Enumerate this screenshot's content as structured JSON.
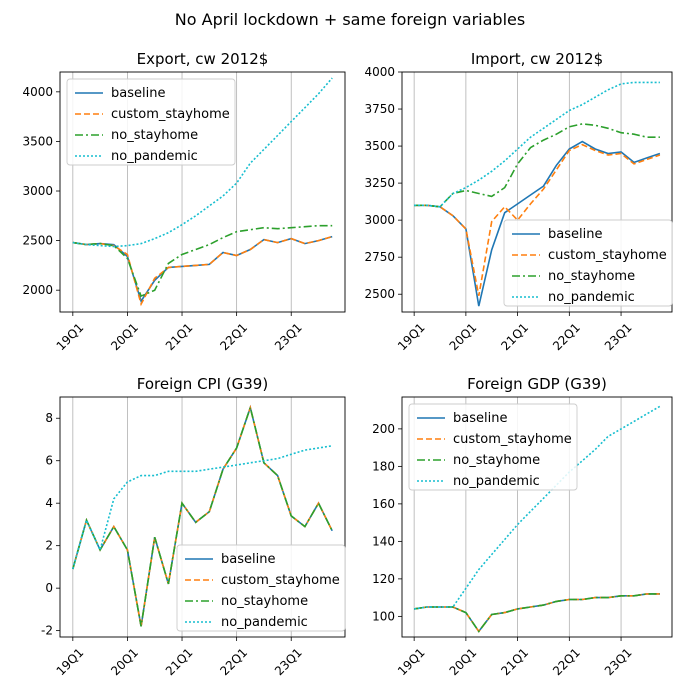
{
  "figure": {
    "suptitle": "No April lockdown + same foreign variables"
  },
  "colors": {
    "baseline": "#1f77b4",
    "custom_stayhome": "#ff7f0e",
    "no_stayhome": "#2ca02c",
    "no_pandemic": "#17becf",
    "grid": "#b0b0b0"
  },
  "chart_data": [
    {
      "type": "line",
      "title": "Export, cw 2012$",
      "x_ticks": [
        "19Q1",
        "20Q1",
        "21Q1",
        "22Q1",
        "23Q1"
      ],
      "ylim": [
        1780,
        4200
      ],
      "y_ticks": [
        2000,
        2500,
        3000,
        3500,
        4000
      ],
      "grid": "vertical",
      "legend": "upper-left",
      "x_count": 20,
      "series": [
        {
          "name": "baseline",
          "style": "solid",
          "values": [
            2480,
            2460,
            2470,
            2460,
            2340,
            1890,
            2100,
            2230,
            2240,
            2250,
            2260,
            2380,
            2350,
            2410,
            2510,
            2480,
            2520,
            2470,
            2500,
            2540
          ]
        },
        {
          "name": "custom_stayhome",
          "style": "dashed",
          "values": [
            2480,
            2460,
            2470,
            2450,
            2360,
            1860,
            2120,
            2230,
            2240,
            2250,
            2260,
            2380,
            2350,
            2410,
            2510,
            2480,
            2520,
            2470,
            2500,
            2540
          ]
        },
        {
          "name": "no_stayhome",
          "style": "dashdot",
          "values": [
            2480,
            2460,
            2470,
            2450,
            2320,
            1940,
            2000,
            2270,
            2360,
            2410,
            2460,
            2530,
            2590,
            2610,
            2630,
            2620,
            2630,
            2640,
            2650,
            2650
          ]
        },
        {
          "name": "no_pandemic",
          "style": "dotted",
          "values": [
            2480,
            2460,
            2450,
            2440,
            2450,
            2470,
            2520,
            2580,
            2660,
            2750,
            2850,
            2950,
            3080,
            3280,
            3420,
            3560,
            3700,
            3840,
            3980,
            4140
          ]
        }
      ]
    },
    {
      "type": "line",
      "title": "Import, cw 2012$",
      "x_ticks": [
        "19Q1",
        "20Q1",
        "21Q1",
        "22Q1",
        "23Q1"
      ],
      "ylim": [
        2380,
        4000
      ],
      "y_ticks": [
        2500,
        2750,
        3000,
        3250,
        3500,
        3750,
        4000
      ],
      "grid": "vertical",
      "legend": "lower-right",
      "x_count": 20,
      "series": [
        {
          "name": "baseline",
          "style": "solid",
          "values": [
            3100,
            3100,
            3090,
            3030,
            2940,
            2420,
            2800,
            3050,
            3110,
            3170,
            3230,
            3370,
            3480,
            3530,
            3480,
            3450,
            3460,
            3390,
            3420,
            3450
          ]
        },
        {
          "name": "custom_stayhome",
          "style": "dashed",
          "values": [
            3100,
            3100,
            3090,
            3030,
            2940,
            2490,
            2990,
            3090,
            3000,
            3110,
            3210,
            3340,
            3470,
            3510,
            3470,
            3440,
            3450,
            3380,
            3410,
            3440
          ]
        },
        {
          "name": "no_stayhome",
          "style": "dashdot",
          "values": [
            3100,
            3100,
            3090,
            3180,
            3200,
            3180,
            3160,
            3220,
            3380,
            3490,
            3540,
            3580,
            3630,
            3650,
            3640,
            3620,
            3590,
            3580,
            3560,
            3560
          ]
        },
        {
          "name": "no_pandemic",
          "style": "dotted",
          "values": [
            3100,
            3100,
            3090,
            3180,
            3220,
            3270,
            3330,
            3400,
            3480,
            3560,
            3620,
            3680,
            3740,
            3780,
            3830,
            3880,
            3920,
            3930,
            3930,
            3930
          ]
        }
      ]
    },
    {
      "type": "line",
      "title": "Foreign CPI (G39)",
      "x_ticks": [
        "19Q1",
        "20Q1",
        "21Q1",
        "22Q1",
        "23Q1"
      ],
      "ylim": [
        -2.3,
        9
      ],
      "y_ticks": [
        -2,
        0,
        2,
        4,
        6,
        8
      ],
      "grid": "vertical",
      "legend": "lower-right",
      "x_count": 20,
      "series": [
        {
          "name": "baseline",
          "style": "solid",
          "values": [
            0.9,
            3.2,
            1.8,
            2.9,
            1.8,
            -1.8,
            2.4,
            0.2,
            4.0,
            3.1,
            3.6,
            5.6,
            6.6,
            8.5,
            5.9,
            5.3,
            3.4,
            2.9,
            4.0,
            2.7
          ]
        },
        {
          "name": "custom_stayhome",
          "style": "dashed",
          "values": [
            0.9,
            3.2,
            1.8,
            2.9,
            1.8,
            -1.8,
            2.4,
            0.2,
            4.0,
            3.1,
            3.6,
            5.6,
            6.6,
            8.5,
            5.9,
            5.3,
            3.4,
            2.9,
            4.0,
            2.7
          ]
        },
        {
          "name": "no_stayhome",
          "style": "dashdot",
          "values": [
            0.9,
            3.2,
            1.8,
            2.9,
            1.8,
            -1.8,
            2.4,
            0.2,
            4.0,
            3.1,
            3.6,
            5.6,
            6.6,
            8.5,
            5.9,
            5.3,
            3.4,
            2.9,
            4.0,
            2.7
          ]
        },
        {
          "name": "no_pandemic",
          "style": "dotted",
          "values": [
            0.9,
            3.2,
            1.8,
            4.2,
            5.0,
            5.3,
            5.3,
            5.5,
            5.5,
            5.5,
            5.6,
            5.7,
            5.8,
            5.9,
            6.0,
            6.1,
            6.3,
            6.5,
            6.6,
            6.7
          ]
        }
      ]
    },
    {
      "type": "line",
      "title": "Foreign GDP (G39)",
      "x_ticks": [
        "19Q1",
        "20Q1",
        "21Q1",
        "22Q1",
        "23Q1"
      ],
      "ylim": [
        89,
        217
      ],
      "y_ticks": [
        100,
        120,
        140,
        160,
        180,
        200
      ],
      "grid": "vertical",
      "legend": "upper-left",
      "x_count": 20,
      "series": [
        {
          "name": "baseline",
          "style": "solid",
          "values": [
            104,
            105,
            105,
            105,
            102,
            92,
            101,
            102,
            104,
            105,
            106,
            108,
            109,
            109,
            110,
            110,
            111,
            111,
            112,
            112
          ]
        },
        {
          "name": "custom_stayhome",
          "style": "dashed",
          "values": [
            104,
            105,
            105,
            105,
            102,
            92,
            101,
            102,
            104,
            105,
            106,
            108,
            109,
            109,
            110,
            110,
            111,
            111,
            112,
            112
          ]
        },
        {
          "name": "no_stayhome",
          "style": "dashdot",
          "values": [
            104,
            105,
            105,
            105,
            102,
            92,
            101,
            102,
            104,
            105,
            106,
            108,
            109,
            109,
            110,
            110,
            111,
            111,
            112,
            112
          ]
        },
        {
          "name": "no_pandemic",
          "style": "dotted",
          "values": [
            104,
            105,
            105,
            105,
            115,
            125,
            133,
            141,
            149,
            156,
            163,
            170,
            177,
            183,
            189,
            196,
            200,
            204,
            208,
            212
          ]
        }
      ]
    }
  ]
}
